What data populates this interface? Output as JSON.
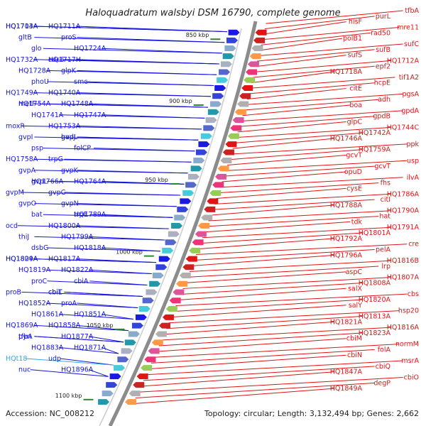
{
  "title": "Haloquadratum walsbyi DSM 16790, complete genome",
  "footer": {
    "accession": "Accession: NC_008212",
    "topology": "Topology: circular; Length: 3,132,494 bp; Genes: 2,662"
  },
  "kbp_labels": [
    "850 kbp",
    "900 kbp",
    "950 kbp",
    "1000 kbp",
    "1050 kbp",
    "1100 kbp"
  ],
  "colors": {
    "left_genes": "#1515dd",
    "right_genes": "#dd1515",
    "highlight": "#33aaee",
    "backbone": "#8c8c8c",
    "tick": "#2a8a2a"
  },
  "left_labels": [
    "HQ1704A",
    "HQ1711A",
    "HQ1713A",
    "proS",
    "gltB",
    "HQ1724A",
    "glo",
    "HQ1717H",
    "HQ1732A",
    "cdc6",
    "HQ1728A",
    "glpK",
    "phoU",
    "smc",
    "HQ1749A",
    "HQ1740A",
    "metF",
    "HQ1748A",
    "HQ1754A",
    "HQ1747A",
    "HQ1741A",
    "HQ1753A",
    "moxR",
    "hadL",
    "gvpI",
    "gvpJ",
    "psp",
    "folCP",
    "HQ1758A",
    "trpG",
    "gvpA",
    "gvpK",
    "HQ1766A",
    "HQ1764A",
    "gvpL",
    "gvpC",
    "gvpM",
    "gvpN",
    "gvpO",
    "HQ1789A",
    "bat",
    "trpE",
    "ocd",
    "HQ1800A",
    "thiJ",
    "HQ1799A",
    "dsbG",
    "HQ1818A",
    "HQ1824A",
    "HQ1817A",
    "HQ1809A",
    "HQ1822A",
    "HQ1819A",
    "cbiA",
    "proC",
    "cbiL",
    "proB",
    "cbiT",
    "HQ1852A",
    "proA",
    "HQ1861A",
    "HQ1851A",
    "HQ1869A",
    "HQ1858A",
    "pyrI",
    "HQ1877A",
    "tfbA",
    "HQ1871A",
    "HQ1883A",
    "udp",
    "HQt18",
    "HQ1896A",
    "nuc"
  ],
  "right_labels": [
    "tfbA",
    "purL",
    "hisF",
    "mre11",
    "rad50",
    "polB1",
    "sufC",
    "sufB",
    "sufS",
    "HQ1712A",
    "epf2",
    "HQ1718A",
    "tif1A2",
    "hcpE",
    "citE",
    "pgsA",
    "adh",
    "boa",
    "gpdA",
    "gpdB",
    "glpC",
    "HQ1744C",
    "HQ1742A",
    "HQ1746A",
    "ppk",
    "HQ1759A",
    "gcvT",
    "usp",
    "gcvT",
    "opuD",
    "ilvA",
    "fhs",
    "cysE",
    "HQ1786A",
    "citI",
    "HQ1788A",
    "HQ1790A",
    "hat",
    "tdk",
    "HQ1791A",
    "HQ1801A",
    "HQ1792A",
    "cre",
    "pelA",
    "HQ1796A",
    "HQ1816B",
    "lrp",
    "aspC",
    "HQ1807A",
    "HQ1808A",
    "salX",
    "cbs",
    "HQ1820A",
    "salY",
    "hsp20",
    "HQ1813A",
    "HQ1821A",
    "HQ1816A",
    "HQ1823A",
    "cbiM",
    "normM",
    "folA",
    "cbiN",
    "msrA",
    "cbiQ",
    "HQ1847A",
    "cbiO",
    "degP",
    "HQ1849A"
  ]
}
